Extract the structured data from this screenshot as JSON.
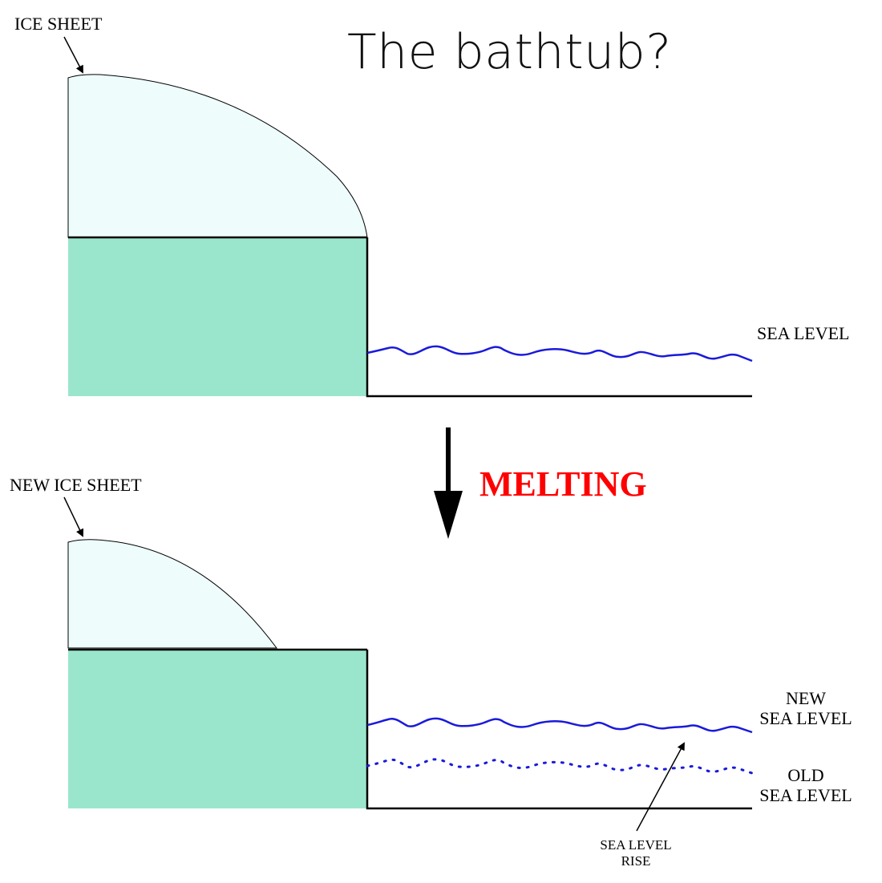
{
  "title": "The bathtub?",
  "labels": {
    "ice_sheet": "ICE SHEET",
    "sea_level": "SEA LEVEL",
    "melting": "MELTING",
    "new_ice_sheet": "NEW ICE SHEET",
    "new_sea_level_line1": "NEW",
    "new_sea_level_line2": "SEA LEVEL",
    "old_sea_level_line1": "OLD",
    "old_sea_level_line2": "SEA LEVEL",
    "sea_level_rise_line1": "SEA LEVEL",
    "sea_level_rise_line2": "RISE"
  },
  "colors": {
    "ice": "#eefcfc",
    "land": "#9ae6cc",
    "water_line": "#1a1adb",
    "melting_text": "#ff0000",
    "outline": "#000000"
  }
}
